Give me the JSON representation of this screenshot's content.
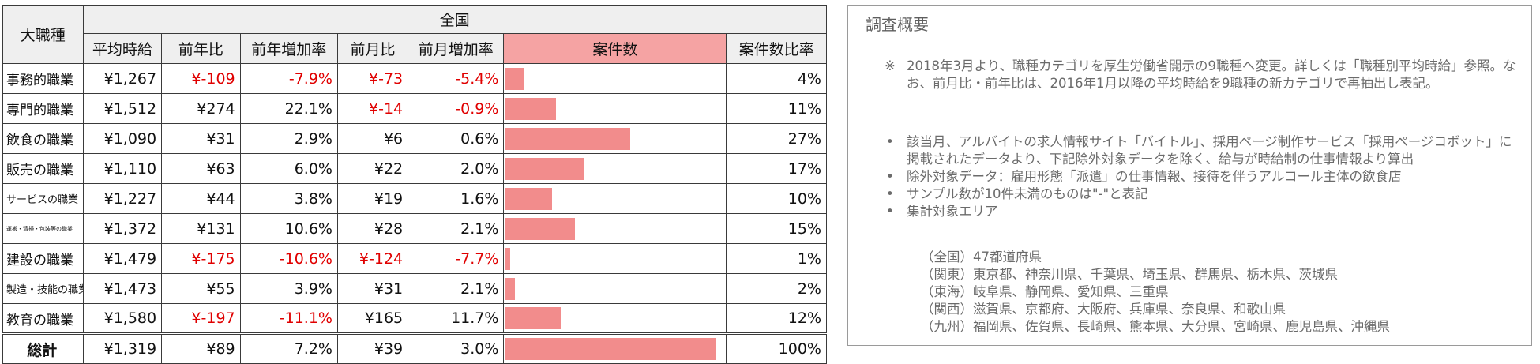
{
  "table": {
    "group_header": "大職種",
    "region_header": "全国",
    "columns": [
      "平均時給",
      "前年比",
      "前年増加率",
      "前月比",
      "前月増加率",
      "案件数",
      "案件数比率"
    ],
    "rows": [
      {
        "job": "事務的職業",
        "avg": "¥1,267",
        "yoy": "¥-109",
        "yoy_rate": "-7.9%",
        "mom": "¥-73",
        "mom_rate": "-5.4%",
        "share": "4%",
        "share_value": 4,
        "yoy_neg": true,
        "yoyr_neg": true,
        "mom_neg": true,
        "momr_neg": true
      },
      {
        "job": "専門的職業",
        "avg": "¥1,512",
        "yoy": "¥274",
        "yoy_rate": "22.1%",
        "mom": "¥-14",
        "mom_rate": "-0.9%",
        "share": "11%",
        "share_value": 11,
        "yoy_neg": false,
        "yoyr_neg": false,
        "mom_neg": true,
        "momr_neg": true
      },
      {
        "job": "飲食の職業",
        "avg": "¥1,090",
        "yoy": "¥31",
        "yoy_rate": "2.9%",
        "mom": "¥6",
        "mom_rate": "0.6%",
        "share": "27%",
        "share_value": 27,
        "yoy_neg": false,
        "yoyr_neg": false,
        "mom_neg": false,
        "momr_neg": false
      },
      {
        "job": "販売の職業",
        "avg": "¥1,110",
        "yoy": "¥63",
        "yoy_rate": "6.0%",
        "mom": "¥22",
        "mom_rate": "2.0%",
        "share": "17%",
        "share_value": 17,
        "yoy_neg": false,
        "yoyr_neg": false,
        "mom_neg": false,
        "momr_neg": false
      },
      {
        "job": "サービスの職業",
        "avg": "¥1,227",
        "yoy": "¥44",
        "yoy_rate": "3.8%",
        "mom": "¥19",
        "mom_rate": "1.6%",
        "share": "10%",
        "share_value": 10,
        "yoy_neg": false,
        "yoyr_neg": false,
        "mom_neg": false,
        "momr_neg": false
      },
      {
        "job": "運搬・清掃・包装等の職業",
        "avg": "¥1,372",
        "yoy": "¥131",
        "yoy_rate": "10.6%",
        "mom": "¥28",
        "mom_rate": "2.1%",
        "share": "15%",
        "share_value": 15,
        "yoy_neg": false,
        "yoyr_neg": false,
        "mom_neg": false,
        "momr_neg": false
      },
      {
        "job": "建設の職業",
        "avg": "¥1,479",
        "yoy": "¥-175",
        "yoy_rate": "-10.6%",
        "mom": "¥-124",
        "mom_rate": "-7.7%",
        "share": "1%",
        "share_value": 1,
        "yoy_neg": true,
        "yoyr_neg": true,
        "mom_neg": true,
        "momr_neg": true
      },
      {
        "job": "製造・技能の職業",
        "avg": "¥1,473",
        "yoy": "¥55",
        "yoy_rate": "3.9%",
        "mom": "¥31",
        "mom_rate": "2.1%",
        "share": "2%",
        "share_value": 2,
        "yoy_neg": false,
        "yoyr_neg": false,
        "mom_neg": false,
        "momr_neg": false
      },
      {
        "job": "教育の職業",
        "avg": "¥1,580",
        "yoy": "¥-197",
        "yoy_rate": "-11.1%",
        "mom": "¥165",
        "mom_rate": "11.7%",
        "share": "12%",
        "share_value": 12,
        "yoy_neg": true,
        "yoyr_neg": true,
        "mom_neg": false,
        "momr_neg": false
      }
    ],
    "total": {
      "job": "総計",
      "avg": "¥1,319",
      "yoy": "¥89",
      "yoy_rate": "7.2%",
      "mom": "¥39",
      "mom_rate": "3.0%",
      "share": "100%",
      "share_value": 100
    },
    "bar_color": "#f28c8c",
    "negative_color": "#e00000"
  },
  "survey": {
    "title": "調査概要",
    "note_mark": "※",
    "note": "2018年3月より、職種カテゴリを厚生労働省開示の9職種へ変更。詳しくは「職種別平均時給」参照。なお、前月比・前年比は、2016年1月以降の平均時給を9職種の新カテゴリで再抽出し表記。",
    "bullets": [
      "該当月、アルバイトの求人情報サイト「バイトル」、採用ページ制作サービス「採用ページコボット」に掲載されたデータより、下記除外対象データを除く、給与が時給制の仕事情報より算出",
      "除外対象データ：雇用形態「派遣」の仕事情報、接待を伴うアルコール主体の飲食店",
      "サンプル数が10件未満のものは\"-\"と表記",
      "集計対象エリア"
    ],
    "areas": [
      "（全国）47都道府県",
      "（関東）東京都、神奈川県、千葉県、埼玉県、群馬県、栃木県、茨城県",
      "（東海）岐阜県、静岡県、愛知県、三重県",
      "（関西）滋賀県、京都府、大阪府、兵庫県、奈良県、和歌山県",
      "（九州）福岡県、佐賀県、長崎県、熊本県、大分県、宮崎県、鹿児島県、沖縄県"
    ]
  }
}
